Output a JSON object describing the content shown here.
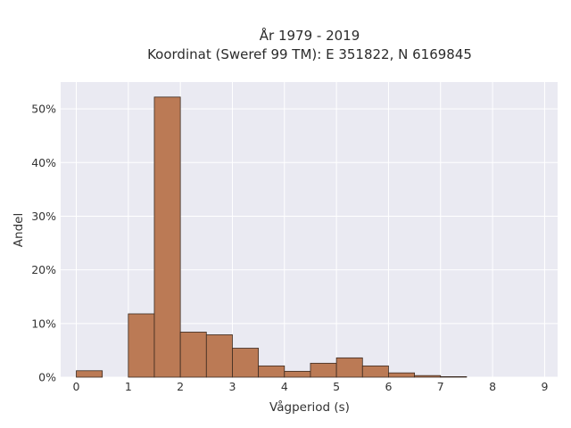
{
  "chart_data": {
    "type": "bar",
    "title_line1": "År 1979 - 2019",
    "title_line2": "Koordinat (Sweref 99 TM): E 351822, N 6169845",
    "xlabel": "Vågperiod (s)",
    "ylabel": "Andel",
    "bin_width": 0.5,
    "bin_starts": [
      0,
      0.5,
      1,
      1.5,
      2,
      2.5,
      3,
      3.5,
      4,
      4.5,
      5,
      5.5,
      6,
      6.5,
      7,
      7.5,
      8,
      8.5
    ],
    "values": [
      1.2,
      0,
      11.8,
      52.2,
      8.4,
      7.9,
      5.4,
      2.1,
      1.1,
      2.6,
      3.6,
      2.1,
      0.8,
      0.3,
      0.1,
      0,
      0,
      0
    ],
    "xlim": [
      -0.3,
      9.25
    ],
    "ylim": [
      0,
      55
    ],
    "xticks": [
      0,
      1,
      2,
      3,
      4,
      5,
      6,
      7,
      8,
      9
    ],
    "xtick_labels": [
      "0",
      "1",
      "2",
      "3",
      "4",
      "5",
      "6",
      "7",
      "8",
      "9"
    ],
    "yticks": [
      0,
      10,
      20,
      30,
      40,
      50
    ],
    "ytick_labels": [
      "0%",
      "10%",
      "20%",
      "30%",
      "40%",
      "50%"
    ],
    "grid": true,
    "bar_color": "#bb7a55",
    "bar_edge_color": "#3b2a20",
    "plot_background": "#eaeaf2"
  }
}
